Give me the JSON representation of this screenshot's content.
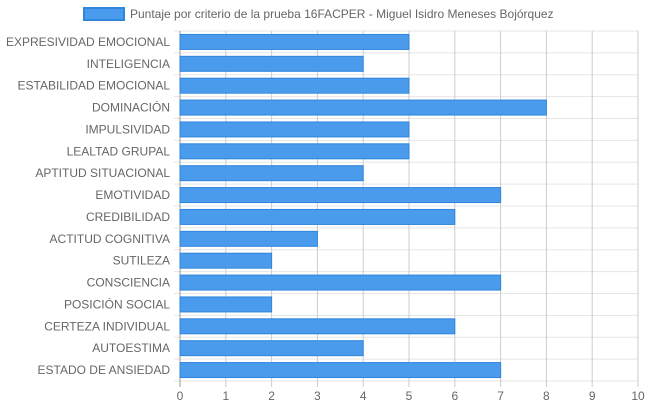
{
  "chart_data": {
    "type": "bar",
    "orientation": "horizontal",
    "legend_position": "top",
    "grid": true,
    "xlim": [
      0,
      10
    ],
    "x_ticks": [
      "0",
      "1",
      "2",
      "3",
      "4",
      "5",
      "6",
      "7",
      "8",
      "9",
      "10"
    ],
    "colors": {
      "bar_fill": "#4a9beb",
      "bar_border": "#2f86de"
    },
    "categories": [
      "EXPRESIVIDAD EMOCIONAL",
      "INTELIGENCIA",
      "ESTABILIDAD EMOCIONAL",
      "DOMINACIÓN",
      "IMPULSIVIDAD",
      "LEALTAD GRUPAL",
      "APTITUD SITUACIONAL",
      "EMOTIVIDAD",
      "CREDIBILIDAD",
      "ACTITUD COGNITIVA",
      "SUTILEZA",
      "CONSCIENCIA",
      "POSICIÓN SOCIAL",
      "CERTEZA INDIVIDUAL",
      "AUTOESTIMA",
      "ESTADO DE ANSIEDAD"
    ],
    "series": [
      {
        "name": "Puntaje por criterio de la prueba 16FACPER - Miguel Isidro Meneses Bojórquez",
        "values": [
          5,
          4,
          5,
          8,
          5,
          5,
          4,
          7,
          6,
          3,
          2,
          7,
          2,
          6,
          4,
          7
        ]
      }
    ]
  }
}
